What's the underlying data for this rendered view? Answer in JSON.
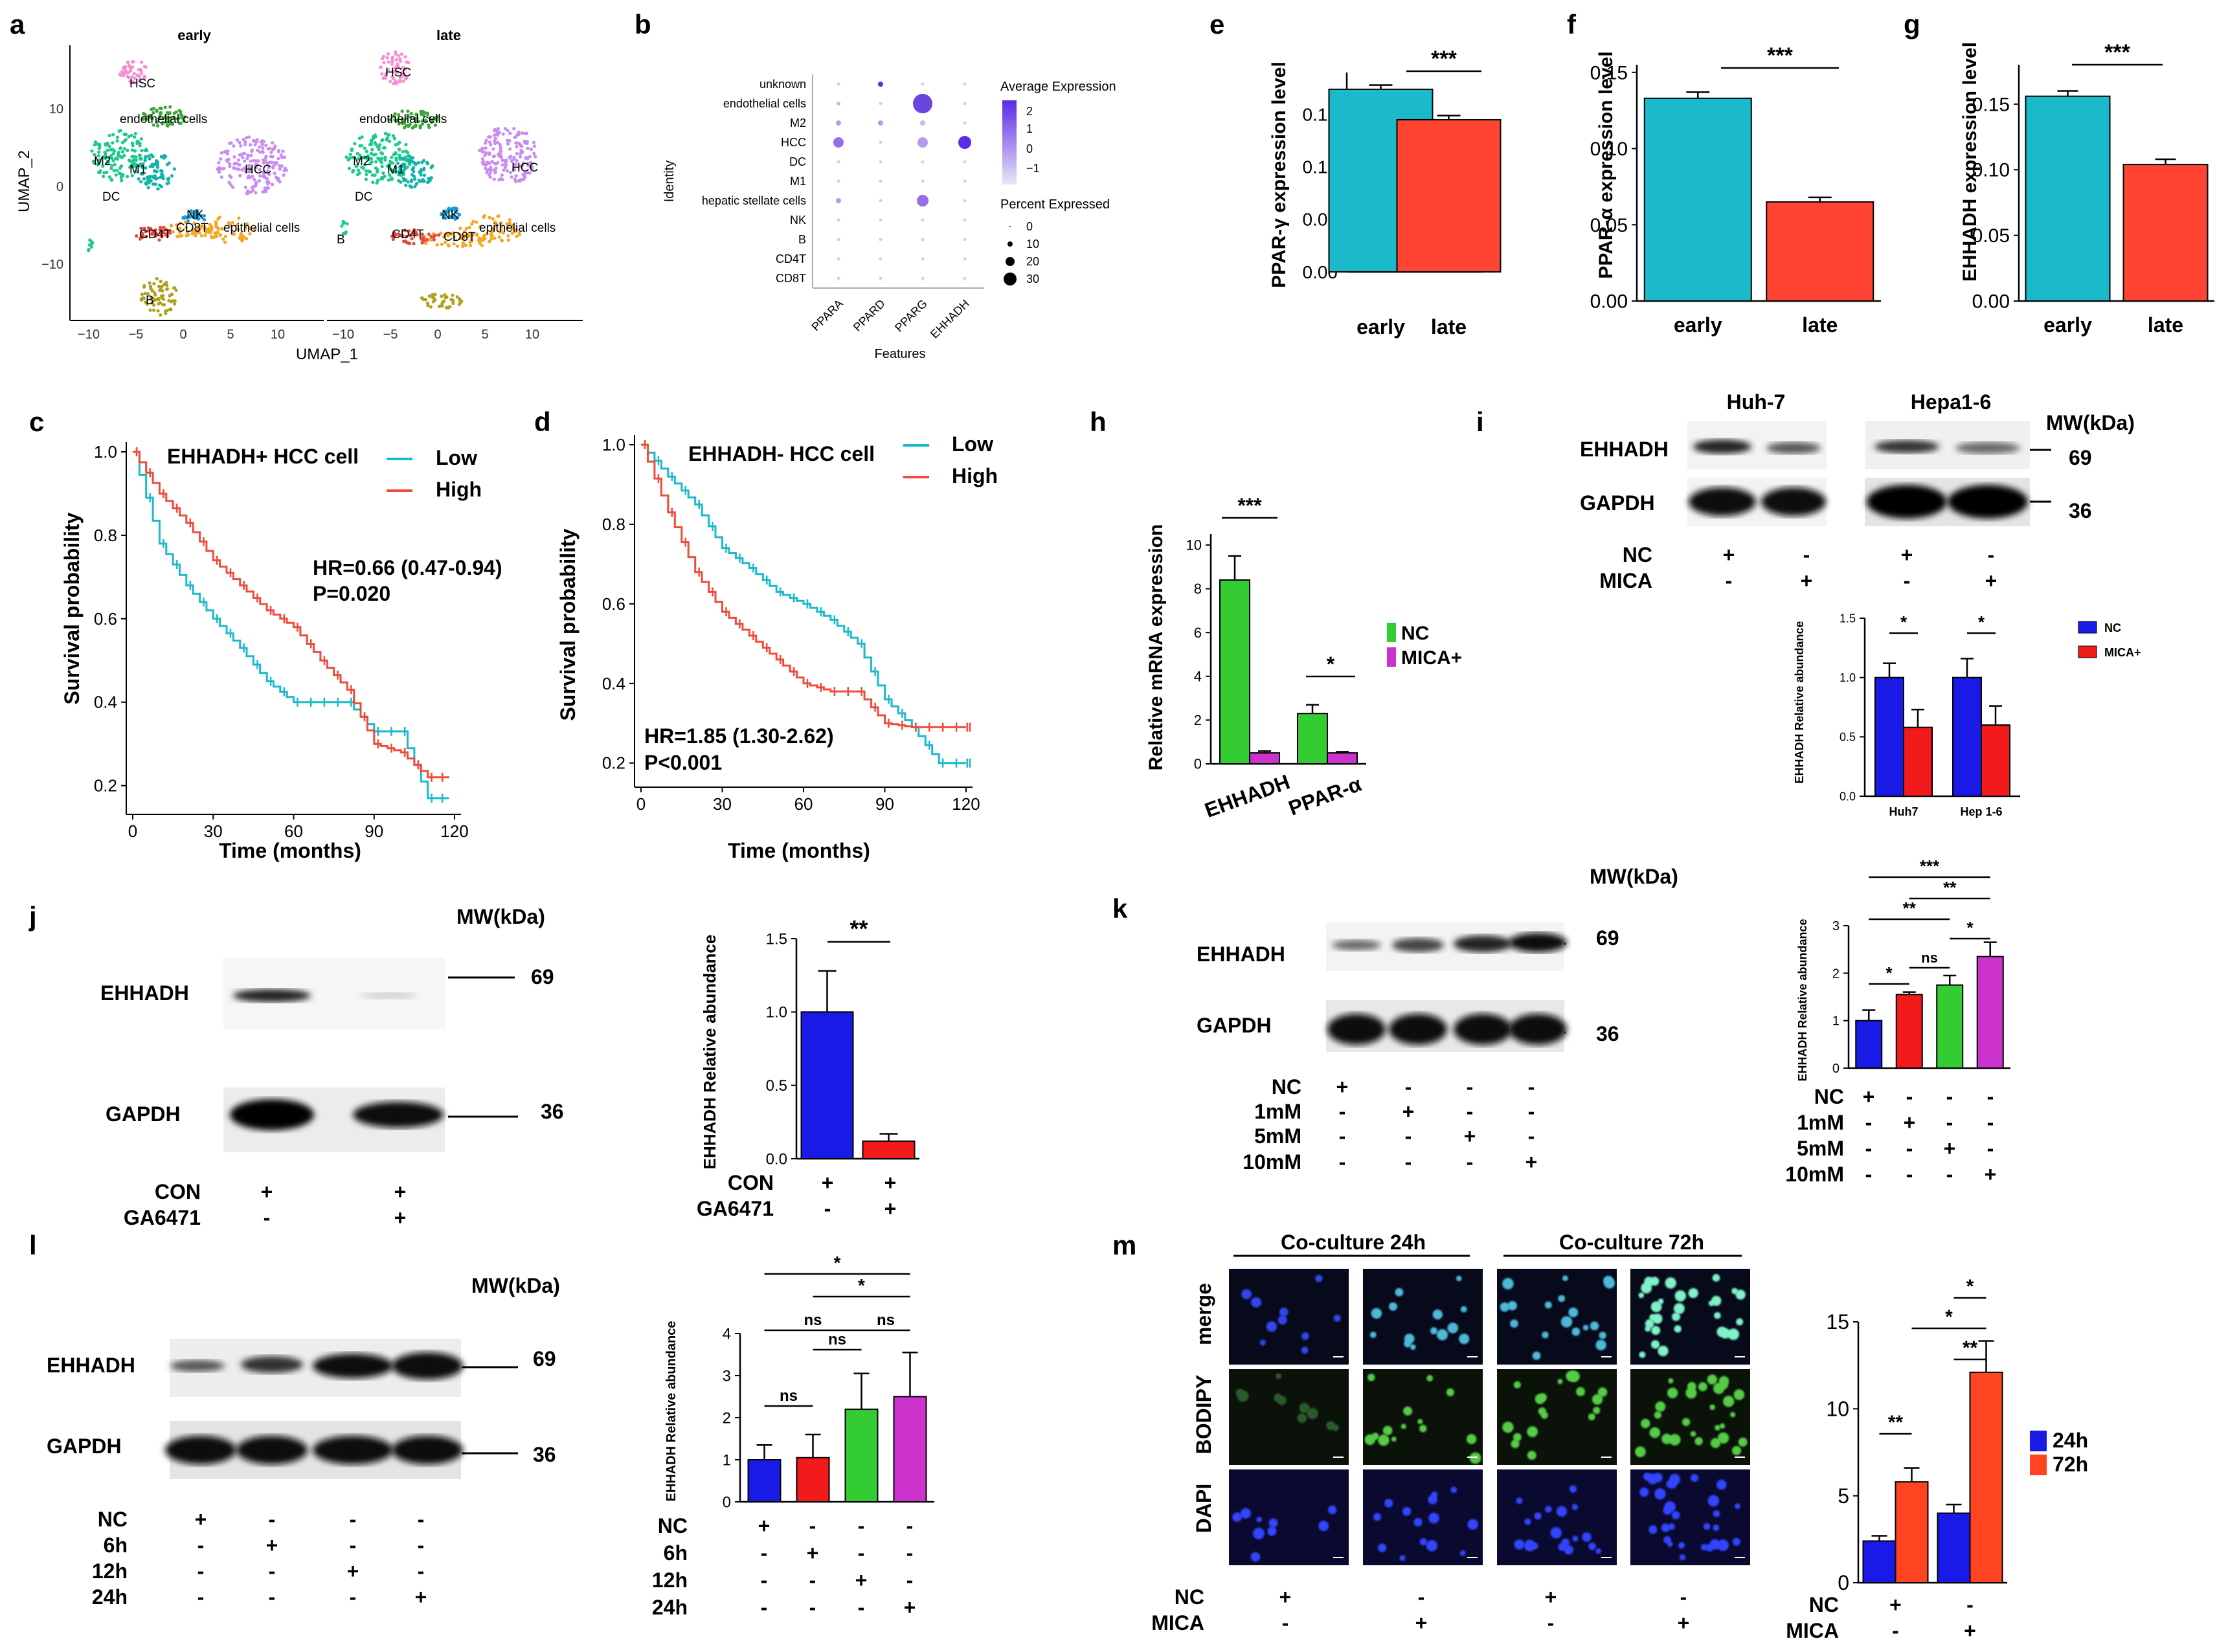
{
  "panels": {
    "a": {
      "letter": "a",
      "facets": [
        "early",
        "late"
      ],
      "xlabel": "UMAP_1",
      "ylabel": "UMAP_2",
      "xticks": [
        "−10",
        "−5",
        "0",
        "5",
        "10"
      ],
      "yticks": [
        "10",
        "0",
        "−10"
      ],
      "cluster_labels": [
        "HSC",
        "endothelial cells",
        "M2",
        "M1",
        "DC",
        "HCC",
        "NK",
        "CD8T",
        "CD4T",
        "epithelial cells",
        "B"
      ]
    },
    "b": {
      "letter": "b",
      "ylabel": "Identity",
      "xlabel": "Features",
      "rows": [
        "unknown",
        "endothelial cells",
        "M2",
        "HCC",
        "DC",
        "M1",
        "hepatic stellate cells",
        "NK",
        "B",
        "CD4T",
        "CD8T"
      ],
      "features": [
        "PPARA",
        "PPARD",
        "PPARG",
        "EHHADH"
      ],
      "avg_title": "Average Expression",
      "avg_ticks": [
        "2",
        "1",
        "0",
        "−1"
      ],
      "pct_title": "Percent Expressed",
      "pct_ticks": [
        "0",
        "10",
        "20",
        "30"
      ]
    },
    "e": {
      "letter": "e",
      "ylabel": "PPAR-γ expression level",
      "yticks": [
        "0.00",
        "0.05",
        "0.10",
        "0.15"
      ],
      "sig": "***"
    },
    "f": {
      "letter": "f",
      "ylabel": "PPAR-α expression level",
      "yticks": [
        "0.00",
        "0.05",
        "0.10",
        "0.15"
      ],
      "sig": "***"
    },
    "g": {
      "letter": "g",
      "ylabel": "EHHADH expression level",
      "yticks": [
        "0.00",
        "0.05",
        "0.10",
        "0.15"
      ],
      "sig": "***"
    },
    "c": {
      "letter": "c",
      "title": "EHHADH+ HCC cell",
      "legend": [
        "Low",
        "High"
      ],
      "hr": "HR=0.66 (0.47-0.94)",
      "p": "P=0.020",
      "xlabel": "Time  (months)",
      "ylabel": "Survival probability",
      "xticks": [
        "0",
        "30",
        "60",
        "90",
        "120"
      ],
      "yticks": [
        "1.0",
        "0.8",
        "0.6",
        "0.4",
        "0.2"
      ]
    },
    "d": {
      "letter": "d",
      "title": "EHHADH- HCC cell",
      "legend": [
        "Low",
        "High"
      ],
      "hr": "HR=1.85 (1.30-2.62)",
      "p": "P<0.001",
      "xlabel": "Time  (months)",
      "ylabel": "Survival probability",
      "xticks": [
        "0",
        "30",
        "60",
        "90",
        "120"
      ],
      "yticks": [
        "1.0",
        "0.8",
        "0.6",
        "0.4",
        "0.2"
      ]
    },
    "h": {
      "letter": "h",
      "ylabel": "Relative mRNA expression",
      "yticks": [
        "0",
        "2",
        "4",
        "6",
        "8",
        "10"
      ],
      "sig": [
        "***",
        "*"
      ],
      "legend": [
        "NC",
        "MICA+"
      ]
    },
    "i": {
      "letter": "i",
      "cells": [
        "Huh-7",
        "Hepa1-6"
      ],
      "mw_title": "MW(kDa)",
      "proteins": [
        "EHHADH",
        "GAPDH"
      ],
      "mw": [
        "69",
        "36"
      ],
      "conditions": [
        {
          "label": "NC",
          "signs": [
            "+",
            "-",
            "+",
            "-"
          ]
        },
        {
          "label": "MICA",
          "signs": [
            "-",
            "+",
            "-",
            "+"
          ]
        }
      ],
      "chart_ylabel": "EHHADH Relative abundance",
      "chart_yticks": [
        "0.0",
        "0.5",
        "1.0",
        "1.5"
      ],
      "legend": [
        "NC",
        "MICA+"
      ],
      "sig": [
        "*",
        "*"
      ]
    },
    "j": {
      "letter": "j",
      "mw_title": "MW(kDa)",
      "proteins": [
        "EHHADH",
        "GAPDH"
      ],
      "mw": [
        "69",
        "36"
      ],
      "conditions": [
        {
          "label": "CON",
          "signs": [
            "+",
            "+"
          ]
        },
        {
          "label": "GA6471",
          "signs": [
            "-",
            "+"
          ]
        }
      ],
      "chart_ylabel": "EHHADH Relative abundance",
      "chart_yticks": [
        "0.0",
        "0.5",
        "1.0",
        "1.5"
      ],
      "sig": "**"
    },
    "k": {
      "letter": "k",
      "mw_title": "MW(kDa)",
      "proteins": [
        "EHHADH",
        "GAPDH"
      ],
      "mw": [
        "69",
        "36"
      ],
      "conditions": [
        {
          "label": "NC",
          "signs": [
            "+",
            "-",
            "-",
            "-"
          ]
        },
        {
          "label": "1mM",
          "signs": [
            "-",
            "+",
            "-",
            "-"
          ]
        },
        {
          "label": "5mM",
          "signs": [
            "-",
            "-",
            "+",
            "-"
          ]
        },
        {
          "label": "10mM",
          "signs": [
            "-",
            "-",
            "-",
            "+"
          ]
        }
      ],
      "chart_ylabel": "EHHADH Relative abundance",
      "chart_yticks": [
        "0",
        "1",
        "2",
        "3"
      ],
      "sig": [
        "***",
        "**",
        "**",
        "ns",
        "*",
        "*"
      ]
    },
    "l": {
      "letter": "l",
      "mw_title": "MW(kDa)",
      "proteins": [
        "EHHADH",
        "GAPDH"
      ],
      "mw": [
        "69",
        "36"
      ],
      "conditions": [
        {
          "label": "NC",
          "signs": [
            "+",
            "-",
            "-",
            "-"
          ]
        },
        {
          "label": "6h",
          "signs": [
            "-",
            "+",
            "-",
            "-"
          ]
        },
        {
          "label": "12h",
          "signs": [
            "-",
            "-",
            "+",
            "-"
          ]
        },
        {
          "label": "24h",
          "signs": [
            "-",
            "-",
            "-",
            "+"
          ]
        }
      ],
      "chart_ylabel": "EHHADH Relative abundance",
      "chart_yticks": [
        "0",
        "1",
        "2",
        "3",
        "4"
      ],
      "sig": [
        "*",
        "*",
        "ns",
        "ns",
        "ns",
        "ns"
      ]
    },
    "m": {
      "letter": "m",
      "groups": [
        "Co-culture 24h",
        "Co-culture 72h"
      ],
      "rows": [
        "merge",
        "BODIPY",
        "DAPI"
      ],
      "conditions": [
        {
          "label": "NC",
          "signs": [
            "+",
            "-",
            "+",
            "-"
          ]
        },
        {
          "label": "MICA",
          "signs": [
            "-",
            "+",
            "-",
            "+"
          ]
        }
      ],
      "chart_yticks": [
        "0",
        "5",
        "10",
        "15"
      ],
      "legend": [
        "24h",
        "72h"
      ],
      "chart_conditions": [
        {
          "label": "NC",
          "signs": [
            "+",
            "-"
          ]
        },
        {
          "label": "MICA",
          "signs": [
            "-",
            "+"
          ]
        }
      ],
      "sig": [
        "*",
        "*",
        "**",
        "**"
      ]
    }
  },
  "chart_data": [
    {
      "id": "e",
      "type": "bar",
      "categories": [
        "early",
        "late"
      ],
      "values": [
        0.174,
        0.145
      ],
      "errors": [
        0.004,
        0.004
      ],
      "ylim": [
        0,
        0.19
      ],
      "colors": [
        "#1ABACB",
        "#FF4433"
      ]
    },
    {
      "id": "f",
      "type": "bar",
      "categories": [
        "early",
        "late"
      ],
      "values": [
        0.133,
        0.065
      ],
      "errors": [
        0.004,
        0.003
      ],
      "ylim": [
        0,
        0.155
      ],
      "colors": [
        "#1ABACB",
        "#FF4433"
      ]
    },
    {
      "id": "g",
      "type": "bar",
      "categories": [
        "early",
        "late"
      ],
      "values": [
        0.156,
        0.104
      ],
      "errors": [
        0.004,
        0.004
      ],
      "ylim": [
        0,
        0.18
      ],
      "colors": [
        "#1ABACB",
        "#FF4433"
      ]
    },
    {
      "id": "h",
      "type": "bar",
      "categories": [
        "EHHADH",
        "PPAR-α"
      ],
      "series": [
        {
          "name": "NC",
          "values": [
            8.4,
            2.3
          ],
          "errors": [
            1.1,
            0.4
          ],
          "color": "#33CC33"
        },
        {
          "name": "MICA+",
          "values": [
            0.5,
            0.5
          ],
          "errors": [
            0.08,
            0.05
          ],
          "color": "#CC33CC"
        }
      ],
      "ylim": [
        0,
        10.5
      ]
    },
    {
      "id": "i",
      "type": "bar",
      "categories": [
        "Huh7",
        "Hep 1-6"
      ],
      "series": [
        {
          "name": "NC",
          "values": [
            1.0,
            1.0
          ],
          "errors": [
            0.12,
            0.16
          ],
          "color": "#1A1AE6"
        },
        {
          "name": "MICA+",
          "values": [
            0.58,
            0.6
          ],
          "errors": [
            0.15,
            0.16
          ],
          "color": "#F21A1A"
        }
      ],
      "ylim": [
        0,
        1.5
      ]
    },
    {
      "id": "j",
      "type": "bar",
      "categories": [
        "CON",
        "GA6471"
      ],
      "values": [
        1.0,
        0.12
      ],
      "errors": [
        0.28,
        0.05
      ],
      "ylim": [
        0,
        1.5
      ],
      "colors": [
        "#1A1AE6",
        "#F21A1A"
      ]
    },
    {
      "id": "k",
      "type": "bar",
      "categories": [
        "NC",
        "1mM",
        "5mM",
        "10mM"
      ],
      "values": [
        1.0,
        1.55,
        1.75,
        2.35
      ],
      "errors": [
        0.22,
        0.05,
        0.2,
        0.3
      ],
      "ylim": [
        0,
        3
      ],
      "colors": [
        "#1A1AE6",
        "#F21A1A",
        "#33CC33",
        "#CC33CC"
      ]
    },
    {
      "id": "l",
      "type": "bar",
      "categories": [
        "NC",
        "6h",
        "12h",
        "24h"
      ],
      "values": [
        1.0,
        1.05,
        2.2,
        2.5
      ],
      "errors": [
        0.35,
        0.55,
        0.85,
        1.05
      ],
      "ylim": [
        0,
        4
      ],
      "colors": [
        "#1A1AE6",
        "#F21A1A",
        "#33CC33",
        "#CC33CC"
      ]
    },
    {
      "id": "m",
      "type": "bar",
      "categories": [
        "NC",
        "MICA"
      ],
      "series": [
        {
          "name": "24h",
          "values": [
            2.4,
            4.0
          ],
          "errors": [
            0.3,
            0.5
          ],
          "color": "#1A1AE6"
        },
        {
          "name": "72h",
          "values": [
            5.8,
            12.1
          ],
          "errors": [
            0.8,
            1.8
          ],
          "color": "#FF4422"
        }
      ],
      "ylim": [
        0,
        15
      ]
    },
    {
      "id": "c",
      "type": "line",
      "title": "EHHADH+ HCC cell",
      "x": [
        0,
        10,
        20,
        30,
        40,
        50,
        60,
        70,
        80,
        90,
        100,
        110
      ],
      "series": [
        {
          "name": "Low",
          "values": [
            1.0,
            0.78,
            0.68,
            0.6,
            0.53,
            0.45,
            0.4,
            0.4,
            0.4,
            0.33,
            0.33,
            0.17
          ],
          "color": "#1ABACB"
        },
        {
          "name": "High",
          "values": [
            1.0,
            0.9,
            0.83,
            0.74,
            0.68,
            0.62,
            0.58,
            0.5,
            0.43,
            0.3,
            0.28,
            0.22
          ],
          "color": "#F04A3A"
        }
      ],
      "xlim": [
        0,
        120
      ],
      "ylim": [
        0.17,
        1.0
      ]
    },
    {
      "id": "d",
      "type": "line",
      "title": "EHHADH- HCC cell",
      "x": [
        0,
        10,
        20,
        30,
        40,
        50,
        60,
        70,
        80,
        90,
        100,
        110,
        120
      ],
      "series": [
        {
          "name": "Low",
          "values": [
            1.0,
            0.92,
            0.85,
            0.74,
            0.69,
            0.63,
            0.6,
            0.56,
            0.5,
            0.36,
            0.29,
            0.2,
            0.2
          ],
          "color": "#1ABACB"
        },
        {
          "name": "High",
          "values": [
            1.0,
            0.83,
            0.68,
            0.58,
            0.52,
            0.46,
            0.4,
            0.38,
            0.38,
            0.3,
            0.29,
            0.29,
            0.29
          ],
          "color": "#F04A3A"
        }
      ],
      "xlim": [
        0,
        120
      ],
      "ylim": [
        0.18,
        1.0
      ]
    }
  ]
}
